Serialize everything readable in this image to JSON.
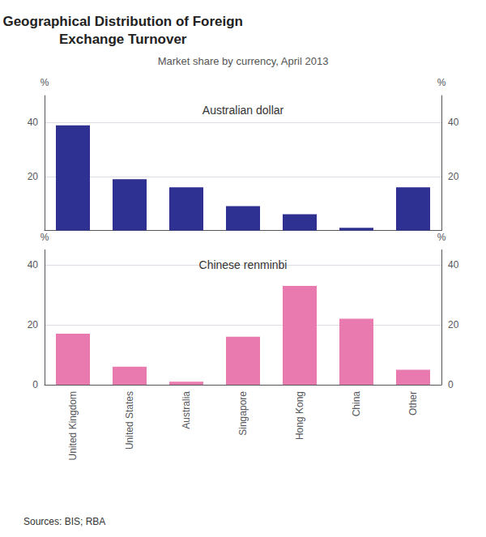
{
  "chart_data": [
    {
      "type": "bar",
      "title": "Geographical Distribution of Foreign\nExchange Turnover",
      "subtitle": "Market share by currency, April 2013",
      "categories": [
        "United Kingdom",
        "United States",
        "Australia",
        "Singapore",
        "Hong Kong",
        "China",
        "Other"
      ],
      "values": [
        39,
        19,
        16,
        9,
        6,
        1,
        16
      ],
      "color": "#2e3192",
      "annotations": [
        "Australian dollar"
      ],
      "ylabel": "%",
      "y2label": "%",
      "ylim": [
        0,
        50
      ],
      "yticks": [
        20,
        40
      ],
      "y2lim": [
        0,
        50
      ],
      "y2ticks": [
        20,
        40
      ],
      "grid": true,
      "tick_labels": "y"
    },
    {
      "type": "bar",
      "categories": [
        "United Kingdom",
        "United States",
        "Australia",
        "Singapore",
        "Hong Kong",
        "China",
        "Other"
      ],
      "values": [
        17,
        6,
        1,
        16,
        33,
        22,
        5
      ],
      "color": "#e87ab0",
      "annotations": [
        "Chinese renminbi"
      ],
      "ylabel": "%",
      "y2label": "%",
      "ylim": [
        0,
        45
      ],
      "yticks": [
        0,
        20,
        40
      ],
      "y2lim": [
        0,
        45
      ],
      "y2ticks": [
        0,
        20,
        40
      ],
      "grid": true,
      "source": "Sources: BIS; RBA"
    }
  ]
}
